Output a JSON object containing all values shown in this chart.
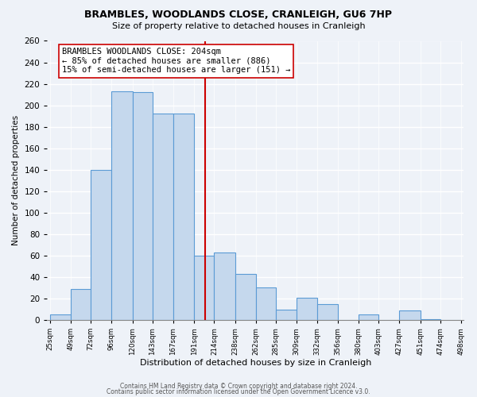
{
  "title": "BRAMBLES, WOODLANDS CLOSE, CRANLEIGH, GU6 7HP",
  "subtitle": "Size of property relative to detached houses in Cranleigh",
  "xlabel": "Distribution of detached houses by size in Cranleigh",
  "ylabel": "Number of detached properties",
  "bar_edges": [
    25,
    49,
    72,
    96,
    120,
    143,
    167,
    191,
    214,
    238,
    262,
    285,
    309,
    332,
    356,
    380,
    403,
    427,
    451,
    474,
    498
  ],
  "bar_heights": [
    5,
    29,
    140,
    213,
    212,
    192,
    192,
    60,
    63,
    43,
    30,
    10,
    21,
    15,
    0,
    5,
    0,
    9,
    1,
    0
  ],
  "bar_color": "#c5d8ed",
  "bar_edge_color": "#5b9bd5",
  "property_line_x": 204,
  "property_line_color": "#cc0000",
  "annotation_text": "BRAMBLES WOODLANDS CLOSE: 204sqm\n← 85% of detached houses are smaller (886)\n15% of semi-detached houses are larger (151) →",
  "annotation_box_color": "#ffffff",
  "annotation_box_edge": "#cc0000",
  "ylim": [
    0,
    260
  ],
  "yticks": [
    0,
    20,
    40,
    60,
    80,
    100,
    120,
    140,
    160,
    180,
    200,
    220,
    240,
    260
  ],
  "tick_labels": [
    "25sqm",
    "49sqm",
    "72sqm",
    "96sqm",
    "120sqm",
    "143sqm",
    "167sqm",
    "191sqm",
    "214sqm",
    "238sqm",
    "262sqm",
    "285sqm",
    "309sqm",
    "332sqm",
    "356sqm",
    "380sqm",
    "403sqm",
    "427sqm",
    "451sqm",
    "474sqm",
    "498sqm"
  ],
  "footer_line1": "Contains HM Land Registry data © Crown copyright and database right 2024.",
  "footer_line2": "Contains public sector information licensed under the Open Government Licence v3.0.",
  "bg_color": "#eef2f8",
  "plot_bg_color": "#eef2f8",
  "grid_color": "#ffffff"
}
